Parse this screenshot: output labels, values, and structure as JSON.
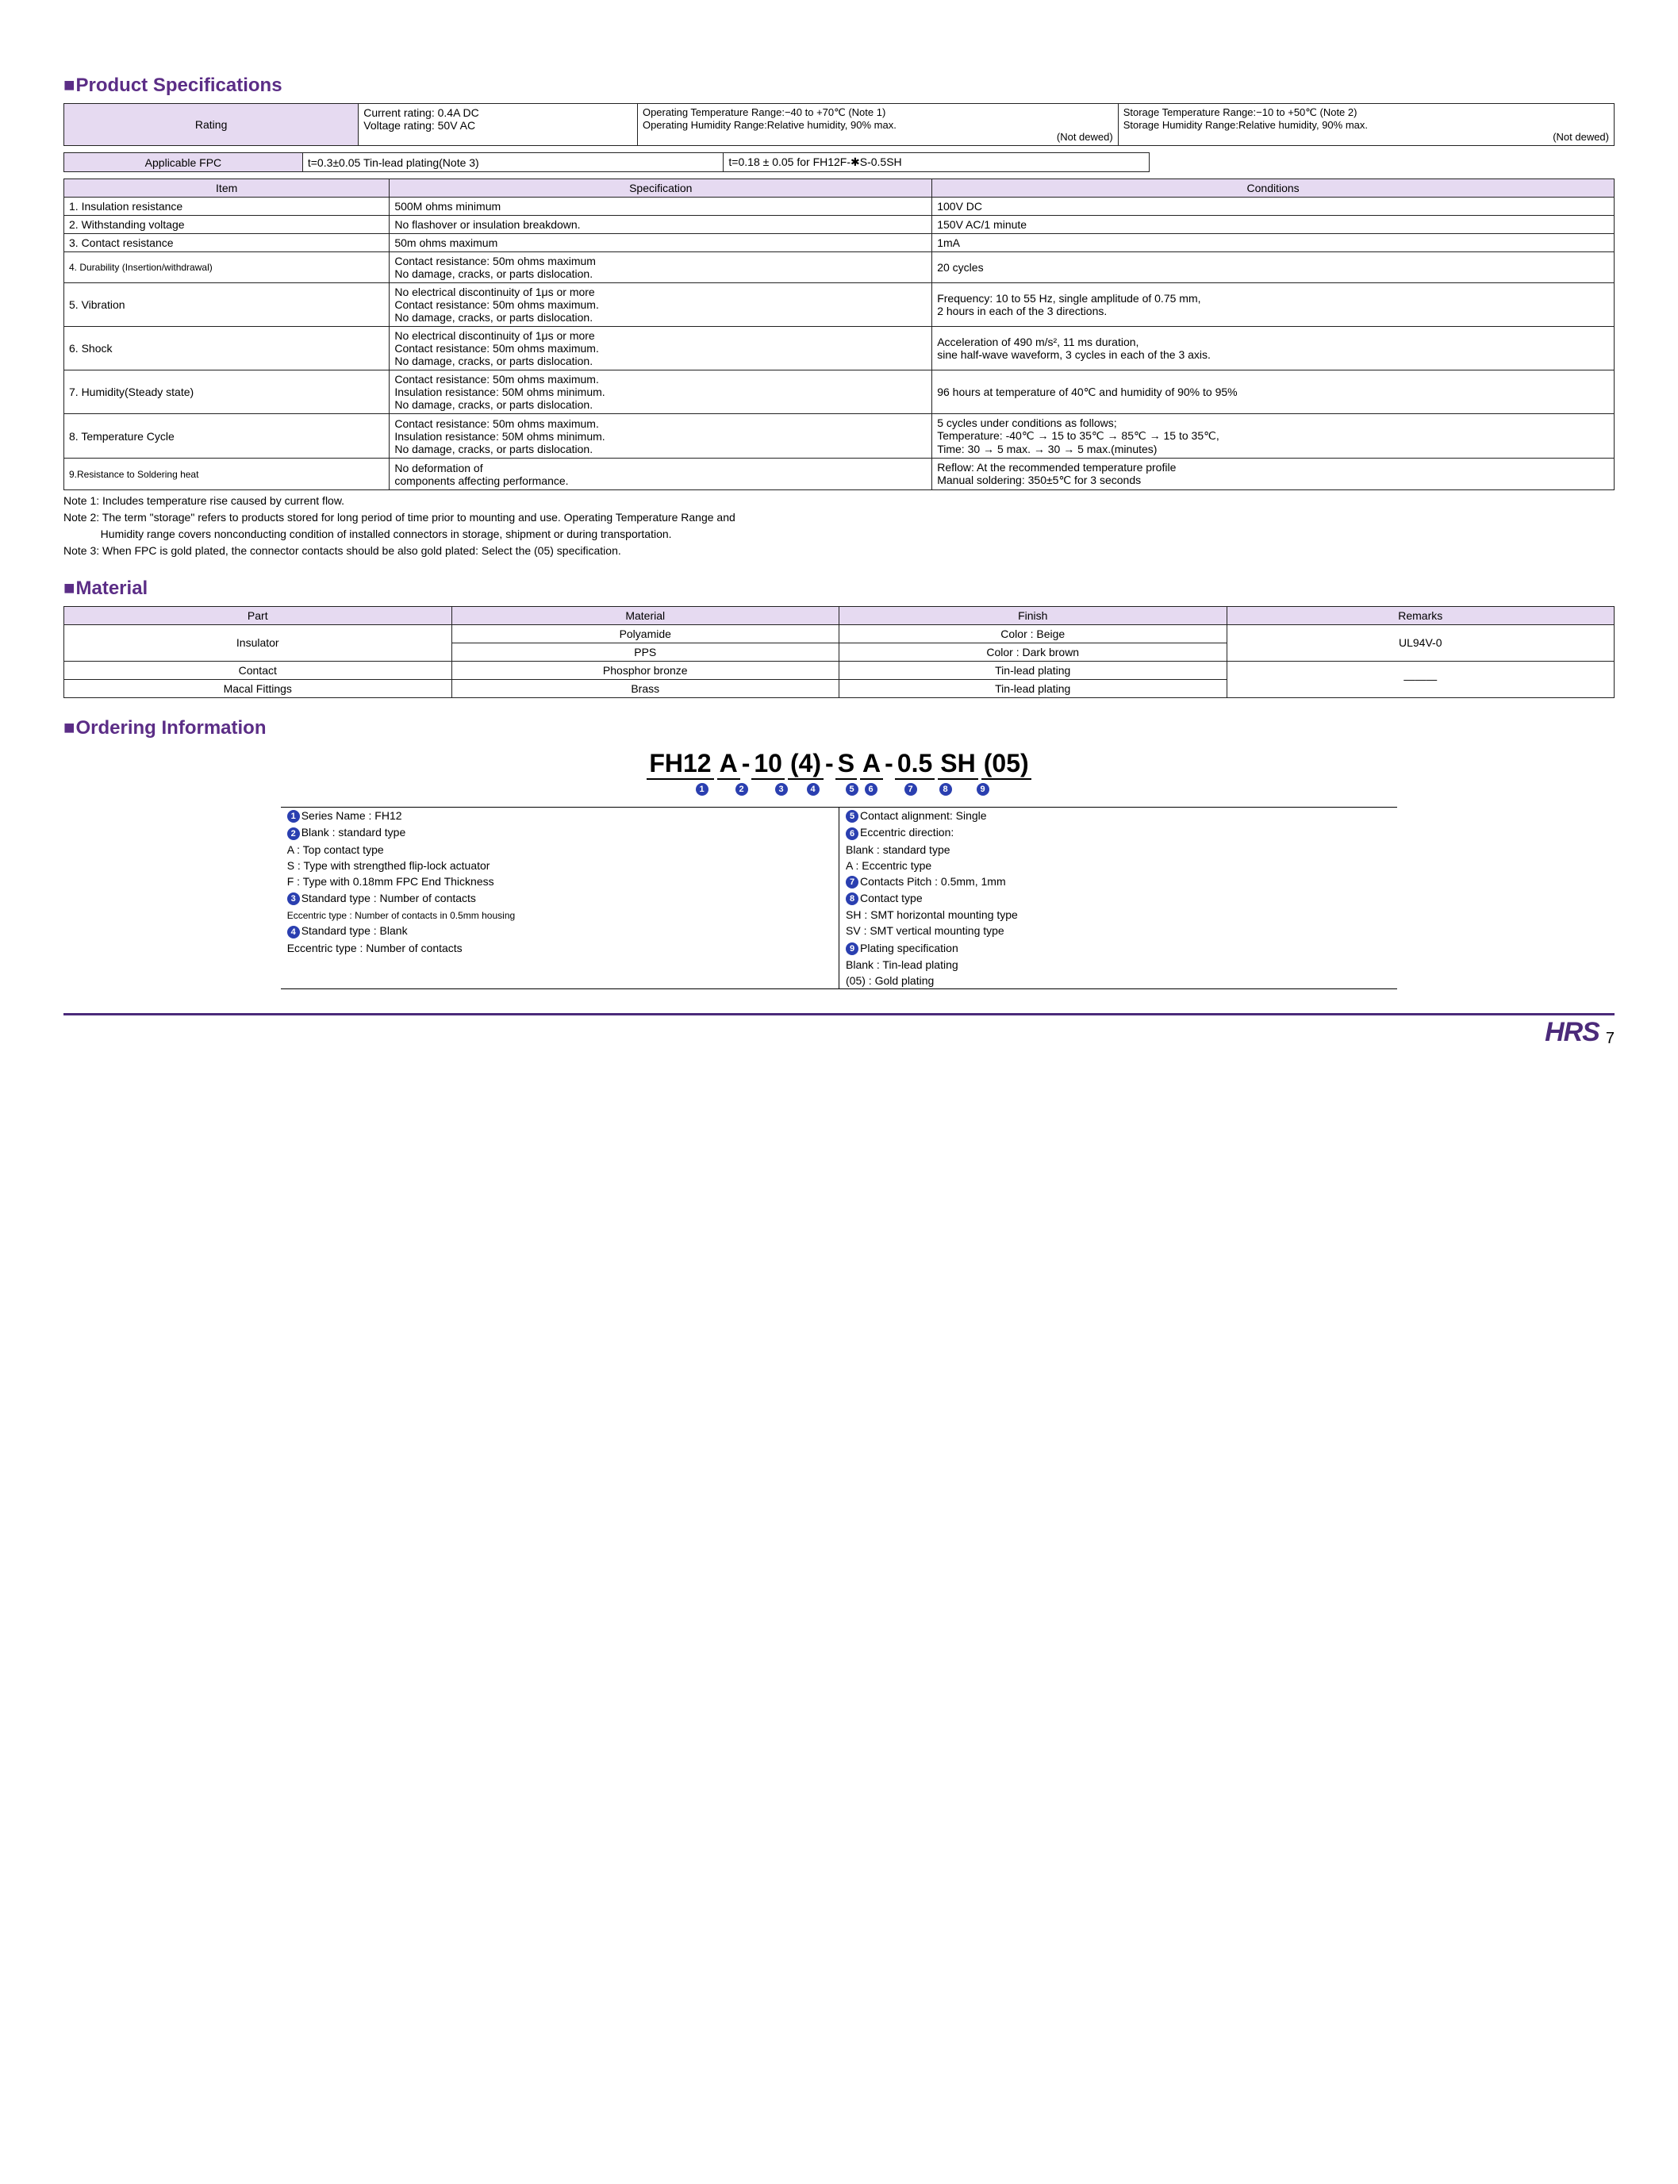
{
  "colors": {
    "accent": "#5b2d86",
    "header_bg": "#e6daf1",
    "circle_bg": "#2a3fb0",
    "border": "#000000"
  },
  "section_titles": {
    "specs": "Product Specifications",
    "material": "Material",
    "ordering": "Ordering Information"
  },
  "rating_table": {
    "row_label": "Rating",
    "ratings": [
      "Current rating: 0.4A DC",
      "Voltage rating: 50V AC"
    ],
    "op_temp": "Operating Temperature Range:−40 to +70℃ (Note 1)",
    "op_hum": "Operating Humidity Range:Relative humidity, 90% max.",
    "op_note": "(Not dewed)",
    "st_temp": "Storage Temperature Range:−10 to +50℃ (Note 2)",
    "st_hum": "Storage Humidity Range:Relative humidity, 90% max.",
    "st_note": "(Not dewed)"
  },
  "fpc_table": {
    "label": "Applicable FPC",
    "c1": "t=0.3±0.05  Tin-lead plating(Note 3)",
    "c2": "t=0.18 ± 0.05 for FH12F-✱S-0.5SH"
  },
  "spec_cols": [
    "Item",
    "Specification",
    "Conditions"
  ],
  "spec_rows": [
    {
      "item": "1. Insulation resistance",
      "spec": "500M ohms minimum",
      "cond": "100V DC"
    },
    {
      "item": "2. Withstanding voltage",
      "spec": "No flashover or insulation breakdown.",
      "cond": "150V AC/1 minute"
    },
    {
      "item": "3. Contact resistance",
      "spec": "50m ohms maximum",
      "cond": "1mA"
    },
    {
      "item": "4. Durability (Insertion/withdrawal)",
      "spec": "Contact resistance: 50m ohms maximum\nNo damage, cracks, or parts dislocation.",
      "cond": "20 cycles",
      "smallitem": true
    },
    {
      "item": "5. Vibration",
      "spec": "No electrical discontinuity of 1μs or more\nContact resistance: 50m ohms maximum.\nNo damage, cracks, or parts dislocation.",
      "cond": "Frequency: 10 to 55 Hz, single amplitude of 0.75 mm,\n2 hours in each of the 3 directions."
    },
    {
      "item": "6. Shock",
      "spec": "No electrical discontinuity of 1μs or more\nContact resistance: 50m ohms maximum.\nNo damage, cracks, or parts dislocation.",
      "cond": "Acceleration of 490 m/s², 11 ms duration,\nsine half-wave waveform, 3 cycles in each of the 3 axis."
    },
    {
      "item": "7. Humidity(Steady state)",
      "spec": "Contact resistance: 50m ohms maximum.\nInsulation resistance: 50M ohms minimum.\nNo damage, cracks, or parts dislocation.",
      "cond": "96 hours at temperature of 40℃ and humidity of 90% to 95%"
    },
    {
      "item": "8. Temperature Cycle",
      "spec": "Contact resistance: 50m ohms maximum.\nInsulation resistance: 50M ohms minimum.\nNo damage, cracks, or parts dislocation.",
      "cond": "5 cycles under conditions as follows;\nTemperature: -40℃ → 15 to 35℃ → 85℃ → 15 to 35℃,\nTime: 30 → 5 max. → 30 → 5 max.(minutes)"
    },
    {
      "item": "9.Resistance to Soldering heat",
      "spec": "No deformation of\ncomponents affecting performance.",
      "cond": "Reflow: At the recommended temperature profile\nManual soldering: 350±5℃ for 3 seconds",
      "smallitem": true
    }
  ],
  "notes": [
    "Note 1: Includes temperature rise caused by current flow.",
    "Note 2: The term \"storage\" refers to products stored for long period of time prior to mounting and use. Operating Temperature Range and",
    "            Humidity range covers nonconducting condition of installed connectors in storage, shipment or during transportation.",
    "Note 3: When FPC is gold plated, the connector contacts should be also gold plated: Select the (05) specification."
  ],
  "material_cols": [
    "Part",
    "Material",
    "Finish",
    "Remarks"
  ],
  "material_rows": [
    {
      "part": "Insulator",
      "mat": "Polyamide",
      "fin": "Color : Beige",
      "rem": "UL94V-0",
      "rowspan_part": 2,
      "rowspan_rem": 2
    },
    {
      "mat": "PPS",
      "fin": "Color : Dark brown"
    },
    {
      "part": "Contact",
      "mat": "Phosphor bronze",
      "fin": "Tin-lead plating",
      "rem": "———",
      "rowspan_rem": 2
    },
    {
      "part": "Macal Fittings",
      "mat": "Brass",
      "fin": "Tin-lead plating"
    }
  ],
  "ordering_code": [
    "FH12",
    "A",
    "-",
    "10",
    "(4)",
    "-",
    "S",
    "A",
    "-",
    "0.5",
    "SH",
    "(05)"
  ],
  "ordering_labels": [
    "1",
    "2",
    "",
    "3",
    "4",
    "",
    "5",
    "6",
    "",
    "7",
    "8",
    "9"
  ],
  "legend_left": [
    {
      "n": "1",
      "t": "Series Name    : FH12"
    },
    {
      "n": "2",
      "t": "Blank : standard type"
    },
    {
      "indent": 1,
      "t": "A : Top contact type"
    },
    {
      "indent": 1,
      "t": "S : Type with strengthed flip-lock actuator"
    },
    {
      "indent": 1,
      "t": "F : Type with 0.18mm FPC End Thickness"
    },
    {
      "n": "3",
      "t": "Standard type    : Number of contacts"
    },
    {
      "indent": 1,
      "t": "Eccentric type   : Number of contacts in 0.5mm housing",
      "small": true
    },
    {
      "n": "4",
      "t": "Standard type    : Blank"
    },
    {
      "indent": 1,
      "t": "Eccentric type   : Number of contacts"
    }
  ],
  "legend_right": [
    {
      "n": "5",
      "t": "Contact alignment: Single"
    },
    {
      "n": "6",
      "t": "Eccentric direction:"
    },
    {
      "indent": 2,
      "t": "Blank : standard type"
    },
    {
      "indent": 2,
      "t": "A : Eccentric type"
    },
    {
      "n": "7",
      "t": "Contacts Pitch    : 0.5mm, 1mm"
    },
    {
      "n": "8",
      "t": "Contact type"
    },
    {
      "indent": 1,
      "t": "SH : SMT horizontal mounting type"
    },
    {
      "indent": 1,
      "t": "SV : SMT vertical mounting type"
    },
    {
      "n": "9",
      "t": "Plating specification"
    },
    {
      "indent": 2,
      "t": "Blank : Tin-lead plating"
    },
    {
      "indent": 2,
      "t": "(05)    : Gold plating"
    }
  ],
  "footer": {
    "logo": "HRS",
    "page": "7"
  }
}
